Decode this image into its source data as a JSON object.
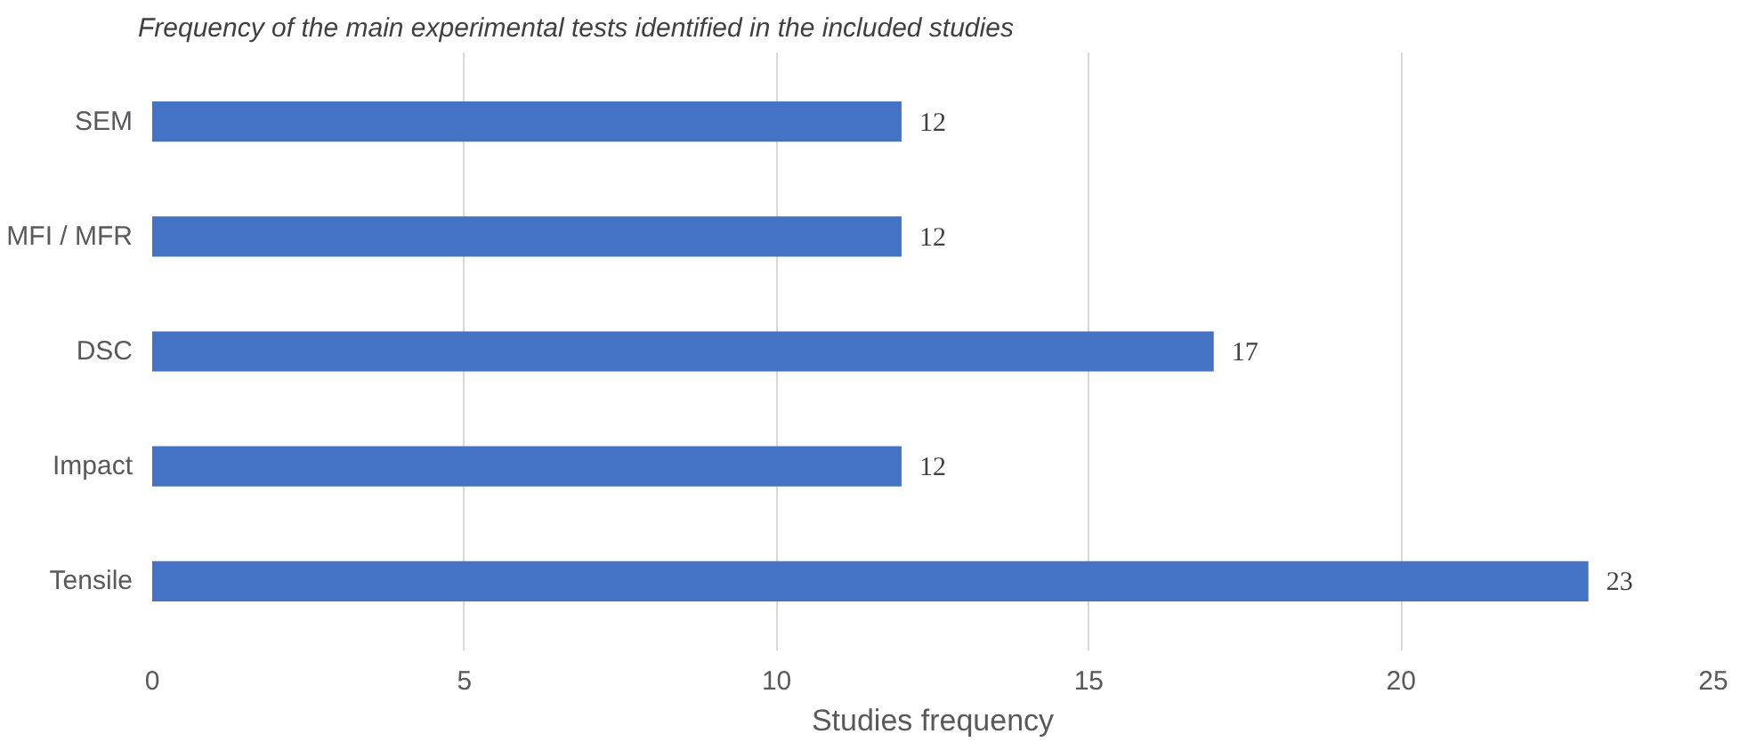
{
  "chart_data": {
    "type": "bar",
    "orientation": "horizontal",
    "title": "Frequency of the main experimental tests identified in the included studies",
    "xlabel": "Studies frequency",
    "categories": [
      "SEM",
      "MFI / MFR",
      "DSC",
      "Impact",
      "Tensile"
    ],
    "values": [
      12,
      12,
      17,
      12,
      23
    ],
    "color": "#4472c4",
    "xlim": [
      0,
      25
    ],
    "xticks": [
      0,
      5,
      10,
      15,
      20,
      25
    ],
    "grid": "x",
    "data_labels": true
  }
}
